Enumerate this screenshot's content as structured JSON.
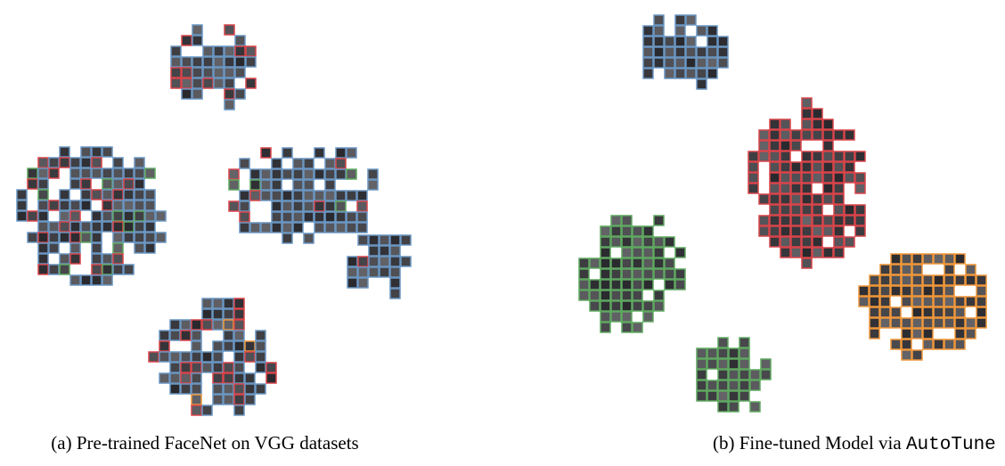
{
  "captions": {
    "a": "(a) Pre-trained FaceNet on VGG datasets",
    "b_text": "(b) Fine-tuned Model via ",
    "b_code": "AutoTune"
  }
}
